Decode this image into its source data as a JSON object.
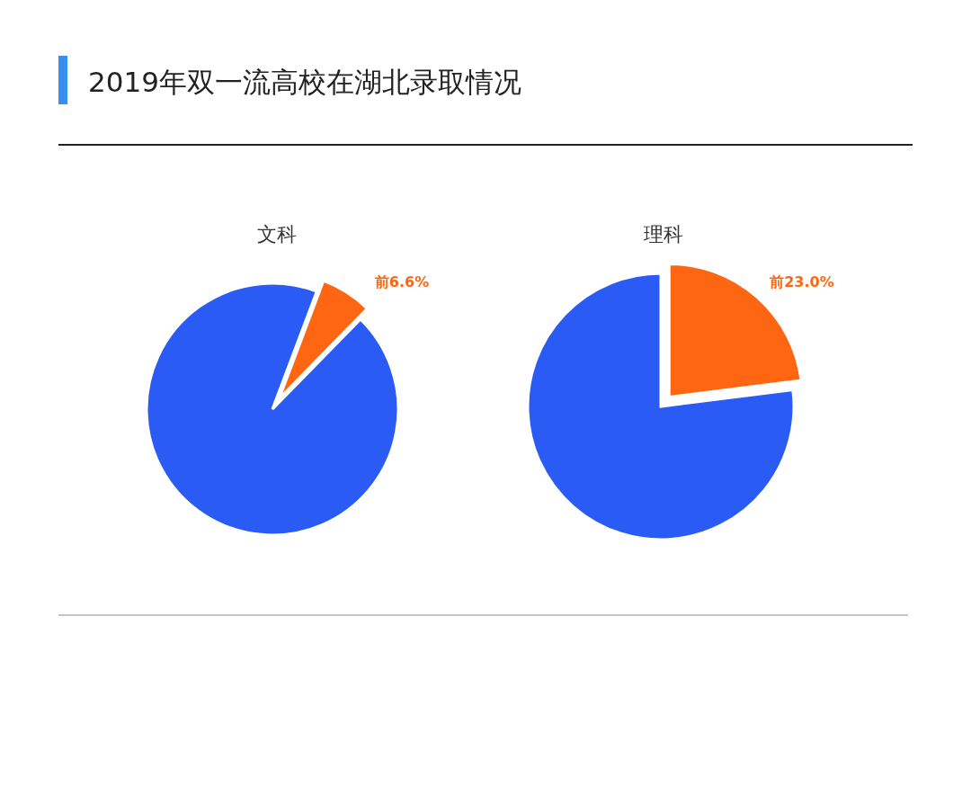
{
  "chart_data": [
    {
      "type": "other",
      "title": "2019年双一流高校在湖北录取情况"
    },
    {
      "type": "pie",
      "title": "文科",
      "categories": [
        null,
        null
      ],
      "values": [
        6.6,
        93.4
      ],
      "colors": [
        "#ff6611",
        "#2a5cf5"
      ],
      "value_labels": [
        "前6.6%",
        null
      ]
    },
    {
      "type": "pie",
      "title": "理科",
      "categories": [
        null,
        null
      ],
      "values": [
        23.0,
        77.0
      ],
      "colors": [
        "#ff6611",
        "#2a5cf5"
      ],
      "value_labels": [
        "前23.0%",
        null
      ]
    }
  ]
}
